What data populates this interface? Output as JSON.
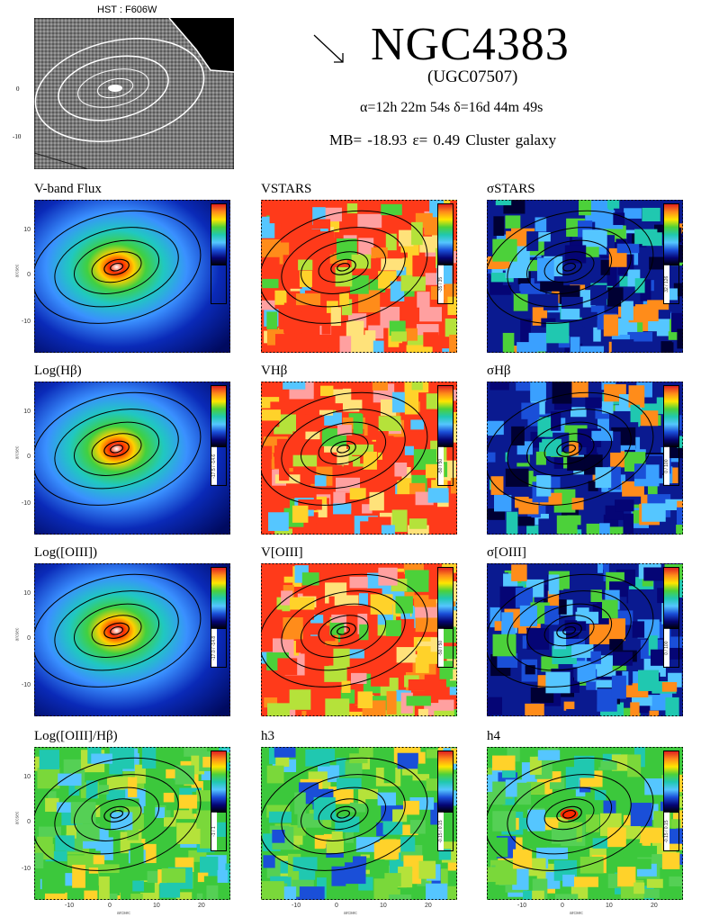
{
  "header": {
    "hst_label": "HST : F606W",
    "galaxy_name": "NGC4383",
    "alt_name": "(UGC07507)",
    "coordinates": "α=12h 22m 54s    δ=16d 44m 49s",
    "properties": "MB= -18.93    ε= 0.49    Cluster galaxy"
  },
  "hst_ticks": [
    "0",
    "-10"
  ],
  "axes": {
    "y_ticks": [
      "10",
      "0",
      "-10"
    ],
    "x_ticks": [
      "-10",
      "0",
      "10",
      "20"
    ],
    "y_label": "arcsec",
    "x_label": "arcsec"
  },
  "panels": [
    {
      "id": "v-band-flux",
      "title": "V-band Flux",
      "style": "flux",
      "range": ""
    },
    {
      "id": "v-stars",
      "title": "VSTARS",
      "style": "velocity",
      "range": "-35 / 35"
    },
    {
      "id": "sigma-stars",
      "title": "σSTARS",
      "style": "dispersion",
      "range": "32 / 126"
    },
    {
      "id": "log-hbeta",
      "title": "Log(Hβ)",
      "style": "flux",
      "range": "-17.5 / -14.6"
    },
    {
      "id": "v-hbeta",
      "title": "VHβ",
      "style": "velocity",
      "range": "-50 / 50"
    },
    {
      "id": "sigma-hbeta",
      "title": "σHβ",
      "style": "dispersion",
      "range": "0 / 100"
    },
    {
      "id": "log-oiii",
      "title": "Log([OIII])",
      "style": "flux",
      "range": "-17.0 / -14.8"
    },
    {
      "id": "v-oiii",
      "title": "V[OIII]",
      "style": "velocity",
      "range": "-50 / 50"
    },
    {
      "id": "sigma-oiii",
      "title": "σ[OIII]",
      "style": "dispersion",
      "range": "0 / 100"
    },
    {
      "id": "log-oiii-hbeta",
      "title": "Log([OIII]/Hβ)",
      "style": "ratio",
      "range": "-1 / 1"
    },
    {
      "id": "h3",
      "title": "h3",
      "style": "moment",
      "range": "-0.15 / 0.15"
    },
    {
      "id": "h4",
      "title": "h4",
      "style": "moment",
      "range": "-0.15 / 0.15"
    }
  ],
  "colors": {
    "flux_core": "#ffffff",
    "flux_mid": "#ff2a00",
    "flux_outer": "#0020b0",
    "velocity_base": "#ffd22a",
    "dispersion_base": "#1a2ca0",
    "ratio_base": "#3cc83c"
  }
}
